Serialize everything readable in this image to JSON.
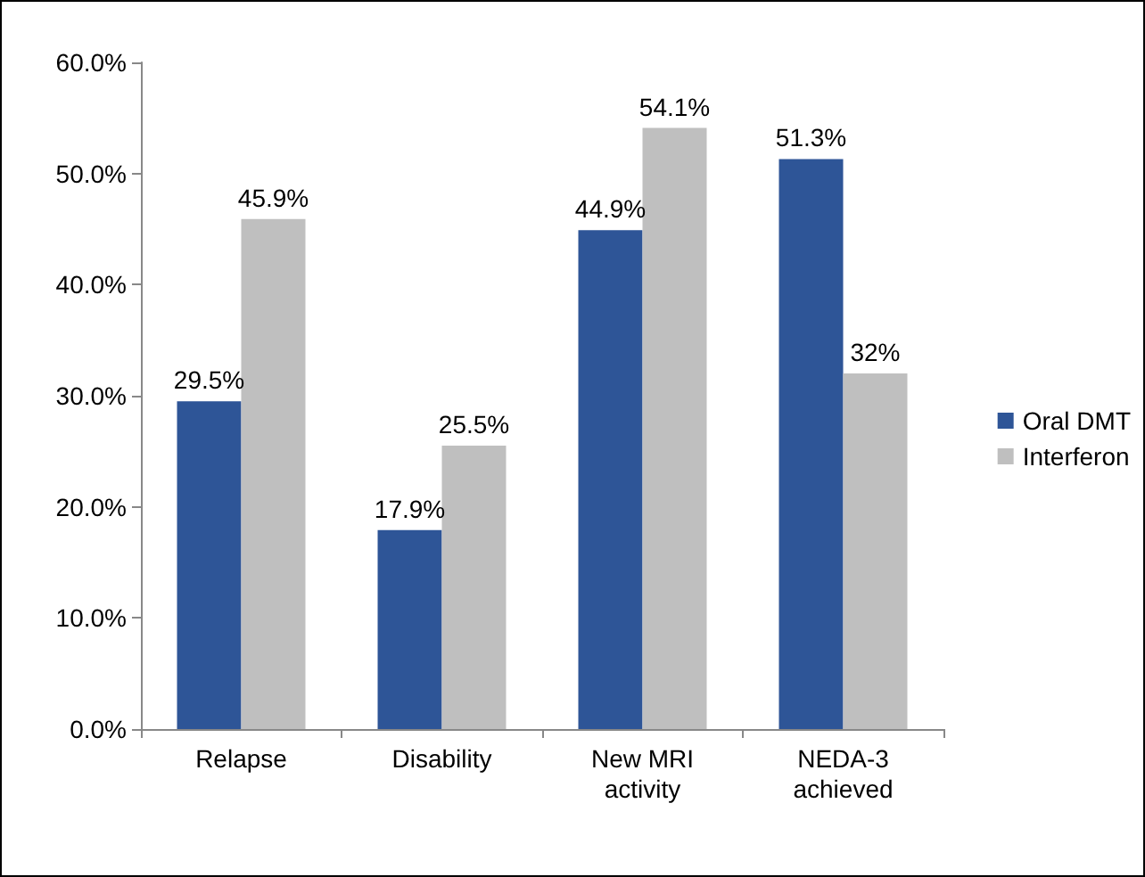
{
  "chart_data": {
    "type": "bar",
    "categories": [
      "Relapse",
      "Disability",
      "New MRI\nactivity",
      "NEDA-3\nachieved"
    ],
    "series": [
      {
        "name": "Oral DMT",
        "color": "#2e5597",
        "values": [
          29.5,
          17.9,
          44.9,
          51.3
        ],
        "value_labels": [
          "29.5%",
          "17.9%",
          "44.9%",
          "51.3%"
        ]
      },
      {
        "name": "Interferon",
        "color": "#bfbfbf",
        "values": [
          45.9,
          25.5,
          54.1,
          32
        ],
        "value_labels": [
          "45.9%",
          "25.5%",
          "54.1%",
          "32%"
        ]
      }
    ],
    "ylim": [
      0,
      60
    ],
    "yticks": [
      {
        "value": 0,
        "label": "0.0%"
      },
      {
        "value": 10,
        "label": "10.0%"
      },
      {
        "value": 20,
        "label": "20.0%"
      },
      {
        "value": 30,
        "label": "30.0%"
      },
      {
        "value": 40,
        "label": "40.0%"
      },
      {
        "value": 50,
        "label": "50.0%"
      },
      {
        "value": 60,
        "label": "60.0%"
      }
    ],
    "legend": "right",
    "grid": false
  }
}
